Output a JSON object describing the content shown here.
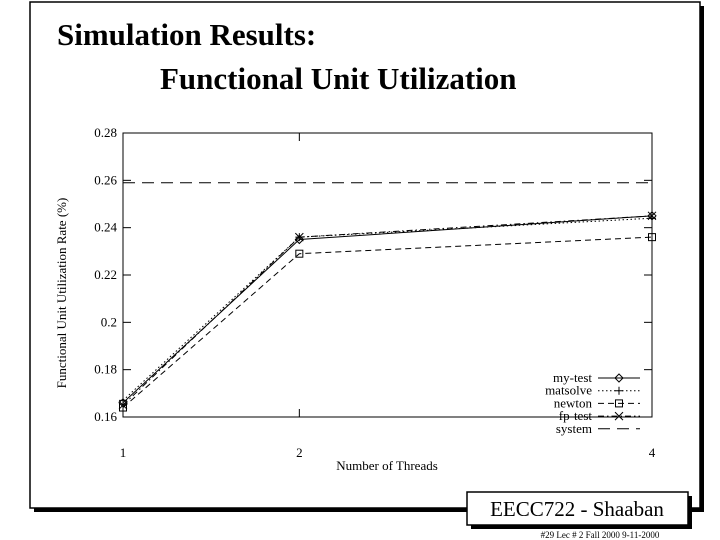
{
  "slide": {
    "title_lines": [
      "Simulation Results:",
      "Functional Unit Utilization"
    ],
    "badge": "EECC722 - Shaaban",
    "footer": "#29   Lec # 2   Fall 2000  9-11-2000"
  },
  "chart_data": {
    "type": "line",
    "x_label": "Number of Threads",
    "y_label": "Functional Unit Utilization Rate (%)",
    "x": [
      1,
      2,
      4
    ],
    "xlim": [
      1,
      4
    ],
    "xticks": [
      1,
      2,
      4
    ],
    "ylim": [
      0.16,
      0.28
    ],
    "yticks": [
      0.16,
      0.18,
      0.2,
      0.22,
      0.24,
      0.26,
      0.28
    ],
    "grid": false,
    "legend": "lower right",
    "series": [
      {
        "name": "my-test",
        "color": "#000000",
        "style": "solid",
        "marker": "diamond",
        "values": [
          0.166,
          0.235,
          0.245
        ]
      },
      {
        "name": "matsolve",
        "color": "#000000",
        "style": "dotted",
        "marker": "plus",
        "values": [
          0.167,
          0.236,
          0.244
        ]
      },
      {
        "name": "newton",
        "color": "#000000",
        "style": "dashed",
        "marker": "square",
        "values": [
          0.164,
          0.229,
          0.236
        ]
      },
      {
        "name": "fp-test",
        "color": "#000000",
        "style": "dashdot",
        "marker": "cross",
        "values": [
          0.165,
          0.236,
          0.245
        ]
      },
      {
        "name": "system",
        "color": "#000000",
        "style": "longdash",
        "marker": "none",
        "values": [
          0.259,
          0.259,
          0.259
        ]
      }
    ]
  }
}
